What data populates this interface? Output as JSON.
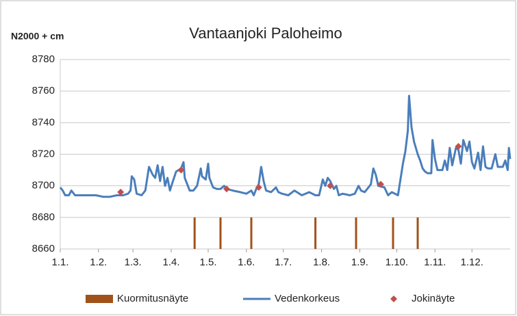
{
  "chart_data": {
    "type": "combo",
    "title": "Vantaanjoki Paloheimo",
    "ylabel": "N2000 + cm",
    "xlim": [
      0,
      365
    ],
    "xticks": [
      {
        "value": 0,
        "label": "1.1."
      },
      {
        "value": 31,
        "label": "1.2."
      },
      {
        "value": 59,
        "label": "1.3."
      },
      {
        "value": 90,
        "label": "1.4."
      },
      {
        "value": 120,
        "label": "1.5."
      },
      {
        "value": 151,
        "label": "1.6."
      },
      {
        "value": 181,
        "label": "1.7."
      },
      {
        "value": 212,
        "label": "1.8."
      },
      {
        "value": 243,
        "label": "1.9."
      },
      {
        "value": 273,
        "label": "1.10."
      },
      {
        "value": 304,
        "label": "1.11."
      },
      {
        "value": 334,
        "label": "1.12."
      }
    ],
    "ylim": [
      8660,
      8780
    ],
    "yticks": [
      8660,
      8680,
      8700,
      8720,
      8740,
      8760,
      8780
    ],
    "grid": true,
    "legend": "bottom",
    "series": [
      {
        "name": "Kuormitusnäyte",
        "type": "bar",
        "color": "#a0521a",
        "x": [
          109,
          130,
          155,
          207,
          240,
          270,
          290
        ],
        "values": [
          8680,
          8680,
          8680,
          8680,
          8680,
          8680,
          8680
        ]
      },
      {
        "name": "Vedenkorkeus",
        "type": "line",
        "color": "#4a7ebb",
        "x": [
          0,
          2,
          4,
          7,
          9,
          12,
          18,
          29,
          35,
          40,
          46,
          51,
          55,
          57,
          58,
          60,
          62,
          66,
          69,
          72,
          75,
          77,
          79,
          81,
          83,
          85,
          87,
          89,
          91,
          94,
          96,
          98,
          100,
          101,
          105,
          108,
          111,
          114,
          115,
          118,
          120,
          121,
          124,
          127,
          130,
          133,
          135,
          140,
          146,
          151,
          155,
          157,
          159,
          161,
          163,
          165,
          167,
          171,
          175,
          177,
          180,
          185,
          190,
          196,
          202,
          207,
          210,
          213,
          215,
          217,
          219,
          222,
          224,
          226,
          229,
          235,
          239,
          242,
          244,
          247,
          252,
          254,
          256,
          258,
          263,
          266,
          269,
          274,
          276,
          278,
          280,
          282,
          283,
          285,
          287,
          290,
          292,
          294,
          296,
          298,
          301,
          302,
          304,
          306,
          310,
          312,
          314,
          316,
          318,
          321,
          323,
          325,
          327,
          330,
          332,
          334,
          336,
          339,
          341,
          343,
          345,
          347,
          350,
          353,
          355,
          359,
          361,
          363,
          364,
          365
        ],
        "values": [
          8699,
          8697,
          8694,
          8694,
          8697,
          8694,
          8694,
          8694,
          8693,
          8693,
          8694,
          8694,
          8695,
          8697,
          8706,
          8704,
          8695,
          8694,
          8697,
          8712,
          8707,
          8705,
          8713,
          8703,
          8712,
          8700,
          8705,
          8697,
          8702,
          8709,
          8710,
          8711,
          8715,
          8705,
          8697,
          8697,
          8700,
          8711,
          8706,
          8704,
          8714,
          8705,
          8699,
          8698,
          8698,
          8700,
          8698,
          8697,
          8696,
          8695,
          8697,
          8694,
          8698,
          8701,
          8712,
          8703,
          8697,
          8696,
          8699,
          8696,
          8695,
          8694,
          8697,
          8694,
          8696,
          8694,
          8694,
          8704,
          8700,
          8705,
          8703,
          8698,
          8700,
          8694,
          8695,
          8694,
          8695,
          8700,
          8697,
          8696,
          8701,
          8711,
          8707,
          8700,
          8699,
          8694,
          8696,
          8694,
          8704,
          8714,
          8722,
          8735,
          8757,
          8737,
          8728,
          8720,
          8716,
          8711,
          8709,
          8708,
          8708,
          8729,
          8717,
          8710,
          8710,
          8716,
          8710,
          8724,
          8713,
          8724,
          8723,
          8714,
          8729,
          8722,
          8728,
          8715,
          8711,
          8721,
          8710,
          8725,
          8712,
          8711,
          8711,
          8720,
          8712,
          8712,
          8716,
          8710,
          8724,
          8717
        ]
      },
      {
        "name": "Jokinäyte",
        "type": "scatter",
        "color": "#c0504d",
        "x": [
          49,
          98,
          135,
          161,
          219,
          260,
          323
        ],
        "values": [
          8696,
          8710,
          8698,
          8699,
          8700,
          8701,
          8725
        ]
      }
    ]
  }
}
